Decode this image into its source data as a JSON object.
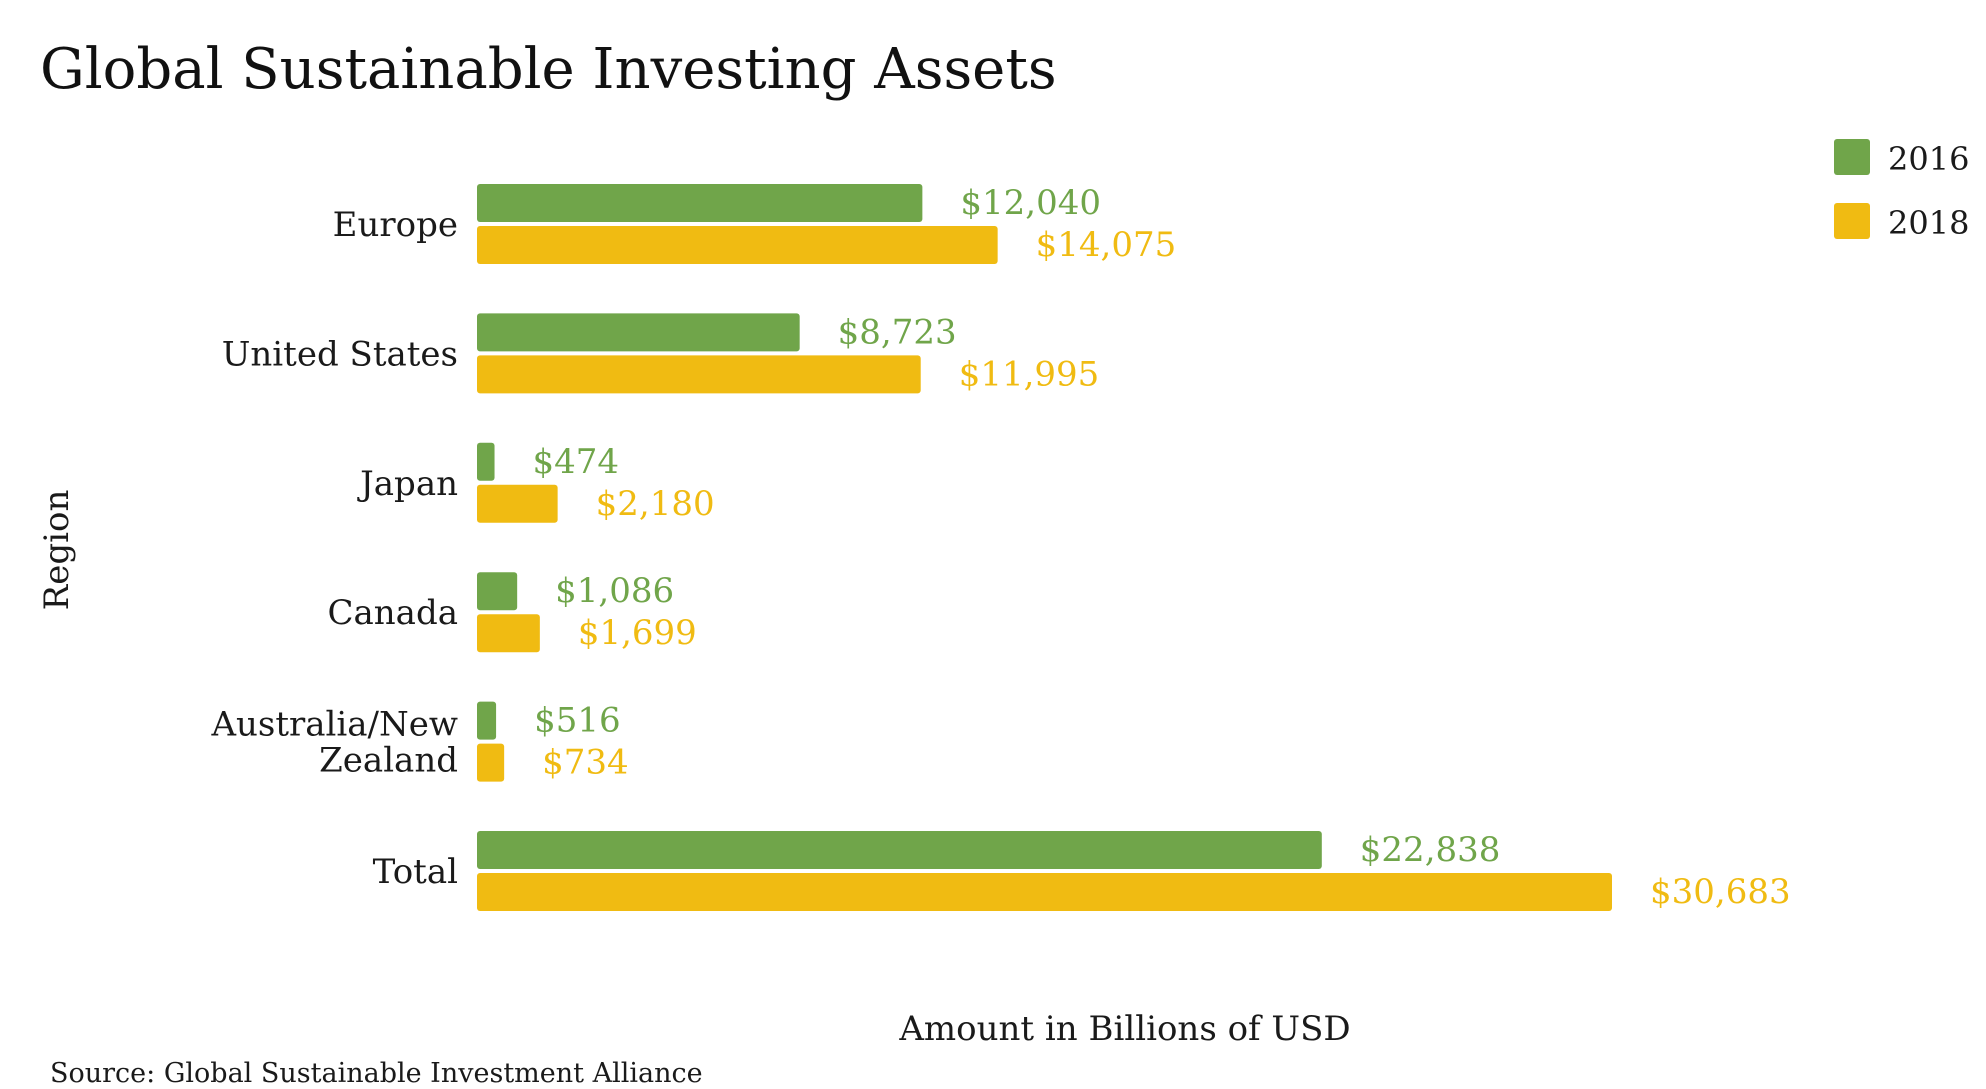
{
  "chart_data": {
    "type": "bar",
    "orientation": "horizontal",
    "title": "Global Sustainable Investing Assets",
    "xlabel": "Amount in Billions of USD",
    "ylabel": "Region",
    "categories": [
      "Europe",
      "United States",
      "Japan",
      "Canada",
      "Australia/New Zealand",
      "Total"
    ],
    "category_lines": [
      [
        "Europe"
      ],
      [
        "United States"
      ],
      [
        "Japan"
      ],
      [
        "Canada"
      ],
      [
        "Australia/New",
        "Zealand"
      ],
      [
        "Total"
      ]
    ],
    "series": [
      {
        "name": "2016",
        "color": "#70a54a",
        "values": [
          12040,
          8723,
          474,
          1086,
          516,
          22838
        ],
        "labels": [
          "$12,040",
          "$8,723",
          "$474",
          "$1,086",
          "$516",
          "$22,838"
        ]
      },
      {
        "name": "2018",
        "color": "#f0bb12",
        "values": [
          14075,
          11995,
          2180,
          1699,
          734,
          30683
        ],
        "labels": [
          "$14,075",
          "$11,995",
          "$2,180",
          "$1,699",
          "$734",
          "$30,683"
        ]
      }
    ],
    "xlim": [
      0,
      30683
    ],
    "grid": false,
    "legend_position": "top-right",
    "source": "Source: Global Sustainable Investment Alliance"
  }
}
